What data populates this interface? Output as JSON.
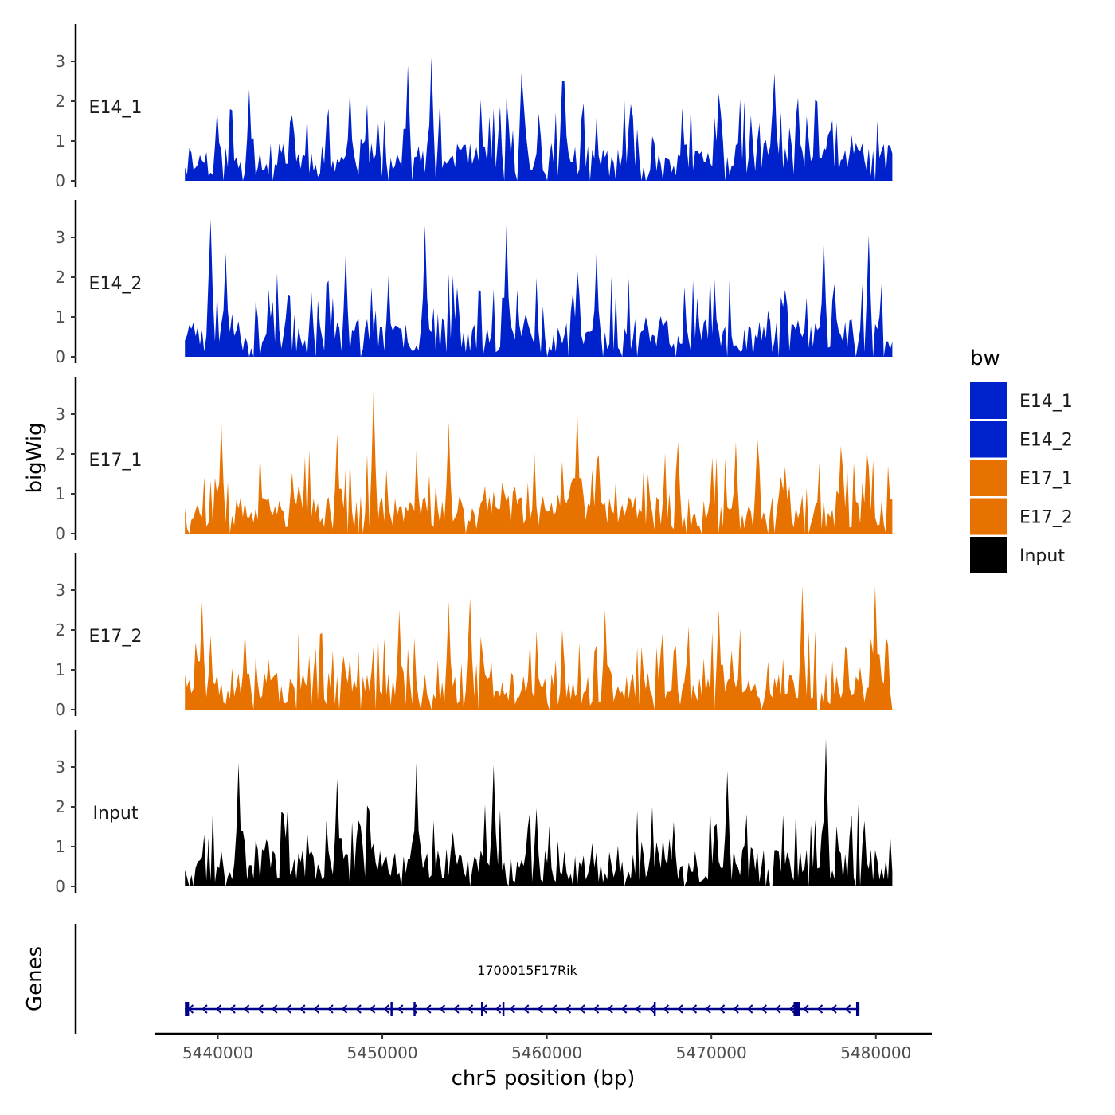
{
  "chart_data": {
    "type": "area",
    "x_axis": {
      "label": "chr5 position (bp)",
      "range": [
        5436200,
        5483400
      ],
      "ticks": [
        5440000,
        5450000,
        5460000,
        5470000,
        5480000
      ],
      "tick_labels": [
        "5440000",
        "5450000",
        "5460000",
        "5470000",
        "5480000"
      ]
    },
    "y_axis": {
      "label": "bigWig",
      "range": [
        0,
        3.9
      ],
      "ticks": [
        0,
        1,
        2,
        3
      ],
      "tick_labels": [
        "0",
        "1",
        "2",
        "3"
      ]
    },
    "data_range": [
      5438000,
      5481000
    ],
    "tracks": [
      {
        "name": "E14_1",
        "color": "#0022cc",
        "seed": 11,
        "peaks": [
          [
            5441900,
            2.3
          ],
          [
            5448000,
            2.3
          ],
          [
            5451500,
            2.9
          ],
          [
            5453000,
            3.1
          ],
          [
            5458500,
            2.7
          ],
          [
            5461000,
            2.5
          ],
          [
            5470500,
            2.2
          ],
          [
            5473800,
            2.7
          ]
        ]
      },
      {
        "name": "E14_2",
        "color": "#0022cc",
        "seed": 23,
        "peaks": [
          [
            5439600,
            3.45
          ],
          [
            5440500,
            2.6
          ],
          [
            5447800,
            2.6
          ],
          [
            5452600,
            3.3
          ],
          [
            5457500,
            3.3
          ],
          [
            5461800,
            2.2
          ],
          [
            5463000,
            2.6
          ],
          [
            5476800,
            3.0
          ],
          [
            5479600,
            3.05
          ]
        ]
      },
      {
        "name": "E17_1",
        "color": "#e87200",
        "seed": 37,
        "peaks": [
          [
            5440200,
            2.8
          ],
          [
            5447300,
            2.5
          ],
          [
            5449500,
            3.6
          ],
          [
            5454000,
            2.8
          ],
          [
            5461800,
            3.1
          ],
          [
            5468000,
            2.3
          ],
          [
            5471500,
            2.3
          ],
          [
            5472800,
            2.4
          ],
          [
            5477900,
            2.2
          ]
        ]
      },
      {
        "name": "E17_2",
        "color": "#e87200",
        "seed": 51,
        "peaks": [
          [
            5439000,
            2.7
          ],
          [
            5441700,
            2.0
          ],
          [
            5451000,
            2.5
          ],
          [
            5454000,
            2.7
          ],
          [
            5455300,
            2.8
          ],
          [
            5463500,
            2.5
          ],
          [
            5470500,
            2.5
          ],
          [
            5475500,
            3.1
          ],
          [
            5480000,
            3.1
          ]
        ]
      },
      {
        "name": "Input",
        "color": "#000000",
        "seed": 67,
        "peaks": [
          [
            5441300,
            3.1
          ],
          [
            5447300,
            2.7
          ],
          [
            5452100,
            3.1
          ],
          [
            5456800,
            3.05
          ],
          [
            5471000,
            2.9
          ],
          [
            5477000,
            3.7
          ]
        ]
      }
    ],
    "legend": {
      "title": "bw",
      "position": "right",
      "entries": [
        {
          "label": "E14_1",
          "color": "#0022cc"
        },
        {
          "label": "E14_2",
          "color": "#0022cc"
        },
        {
          "label": "E17_1",
          "color": "#e87200"
        },
        {
          "label": "E17_2",
          "color": "#e87200"
        },
        {
          "label": "Input",
          "color": "#000000"
        }
      ]
    },
    "genes_track": {
      "label": "Genes",
      "gene": {
        "name": "1700015F17Rik",
        "start": 5438000,
        "end": 5479000,
        "strand": "-",
        "color": "#00008b",
        "exons": [
          [
            5438000,
            5438250
          ],
          [
            5450500,
            5450600
          ],
          [
            5451900,
            5452000
          ],
          [
            5456000,
            5456100
          ],
          [
            5457300,
            5457400
          ],
          [
            5466500,
            5466600
          ],
          [
            5475000,
            5475400
          ],
          [
            5478800,
            5479000
          ]
        ]
      }
    }
  }
}
